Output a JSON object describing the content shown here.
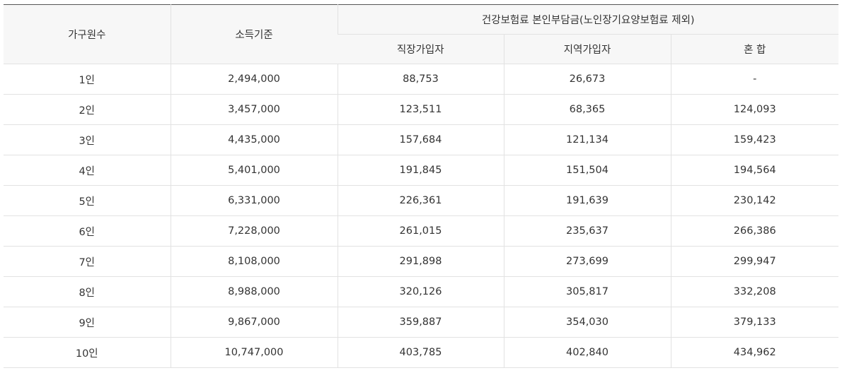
{
  "table": {
    "headers": {
      "household": "가구원수",
      "income": "소득기준",
      "group": "건강보험료 본인부담금(노인장기요양보험료 제외)",
      "employee": "직장가입자",
      "regional": "지역가입자",
      "mixed": "혼 합"
    },
    "rows": [
      {
        "household": "1인",
        "income": "2,494,000",
        "employee": "88,753",
        "regional": "26,673",
        "mixed": "-"
      },
      {
        "household": "2인",
        "income": "3,457,000",
        "employee": "123,511",
        "regional": "68,365",
        "mixed": "124,093"
      },
      {
        "household": "3인",
        "income": "4,435,000",
        "employee": "157,684",
        "regional": "121,134",
        "mixed": "159,423"
      },
      {
        "household": "4인",
        "income": "5,401,000",
        "employee": "191,845",
        "regional": "151,504",
        "mixed": "194,564"
      },
      {
        "household": "5인",
        "income": "6,331,000",
        "employee": "226,361",
        "regional": "191,639",
        "mixed": "230,142"
      },
      {
        "household": "6인",
        "income": "7,228,000",
        "employee": "261,015",
        "regional": "235,637",
        "mixed": "266,386"
      },
      {
        "household": "7인",
        "income": "8,108,000",
        "employee": "291,898",
        "regional": "273,699",
        "mixed": "299,947"
      },
      {
        "household": "8인",
        "income": "8,988,000",
        "employee": "320,126",
        "regional": "305,817",
        "mixed": "332,208"
      },
      {
        "household": "9인",
        "income": "9,867,000",
        "employee": "359,887",
        "regional": "354,030",
        "mixed": "379,133"
      },
      {
        "household": "10인",
        "income": "10,747,000",
        "employee": "403,785",
        "regional": "402,840",
        "mixed": "434,962"
      }
    ]
  }
}
